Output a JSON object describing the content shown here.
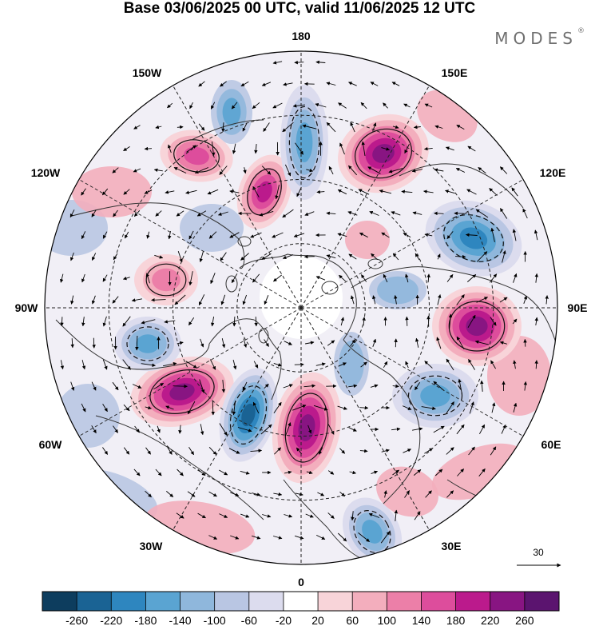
{
  "title": "Base 03/06/2025 00 UTC, valid 11/06/2025 12 UTC",
  "brand": "MODES",
  "brand_mark": "®",
  "longitude_labels": {
    "top": "180",
    "bottom": "0",
    "left": "90W",
    "right": "90E",
    "upper_left_1": "150W",
    "upper_left_2": "120W",
    "lower_left_1": "60W",
    "lower_left_2": "30W",
    "upper_right_1": "150E",
    "upper_right_2": "120E",
    "lower_right_1": "60E",
    "lower_right_2": "30E"
  },
  "vector_reference": {
    "value": "30"
  },
  "colorbar": {
    "labels": [
      "-260",
      "-220",
      "-180",
      "-140",
      "-100",
      "-60",
      "-20",
      "20",
      "60",
      "100",
      "140",
      "180",
      "220",
      "260"
    ],
    "colors": [
      "#0d3d5e",
      "#1a6394",
      "#2e86bf",
      "#5aa4d2",
      "#8fb7dc",
      "#b9c6e3",
      "#dcdcee",
      "#ffffff",
      "#f8d4d9",
      "#f3aebd",
      "#ec7fa8",
      "#dd4d9c",
      "#bb1a8c",
      "#881582",
      "#5b146f"
    ]
  },
  "anomaly_centers": [
    {
      "name": "pink-center-east-siberia",
      "value": 240
    },
    {
      "name": "pink-center-asia",
      "value": 220
    },
    {
      "name": "pink-center-europe",
      "value": 240
    },
    {
      "name": "pink-center-atlantic",
      "value": 200
    },
    {
      "name": "pink-center-alaska",
      "value": 170
    },
    {
      "name": "pink-center-pacific",
      "value": 150
    },
    {
      "name": "pink-center-canada",
      "value": 110
    },
    {
      "name": "blue-center-atlantic",
      "value": -230
    },
    {
      "name": "blue-center-siberia",
      "value": -190
    },
    {
      "name": "blue-center-russia",
      "value": -130
    },
    {
      "name": "blue-center-pacific",
      "value": -150
    },
    {
      "name": "blue-center-hudson",
      "value": -120
    },
    {
      "name": "blue-center-black-sea",
      "value": -140
    }
  ]
}
